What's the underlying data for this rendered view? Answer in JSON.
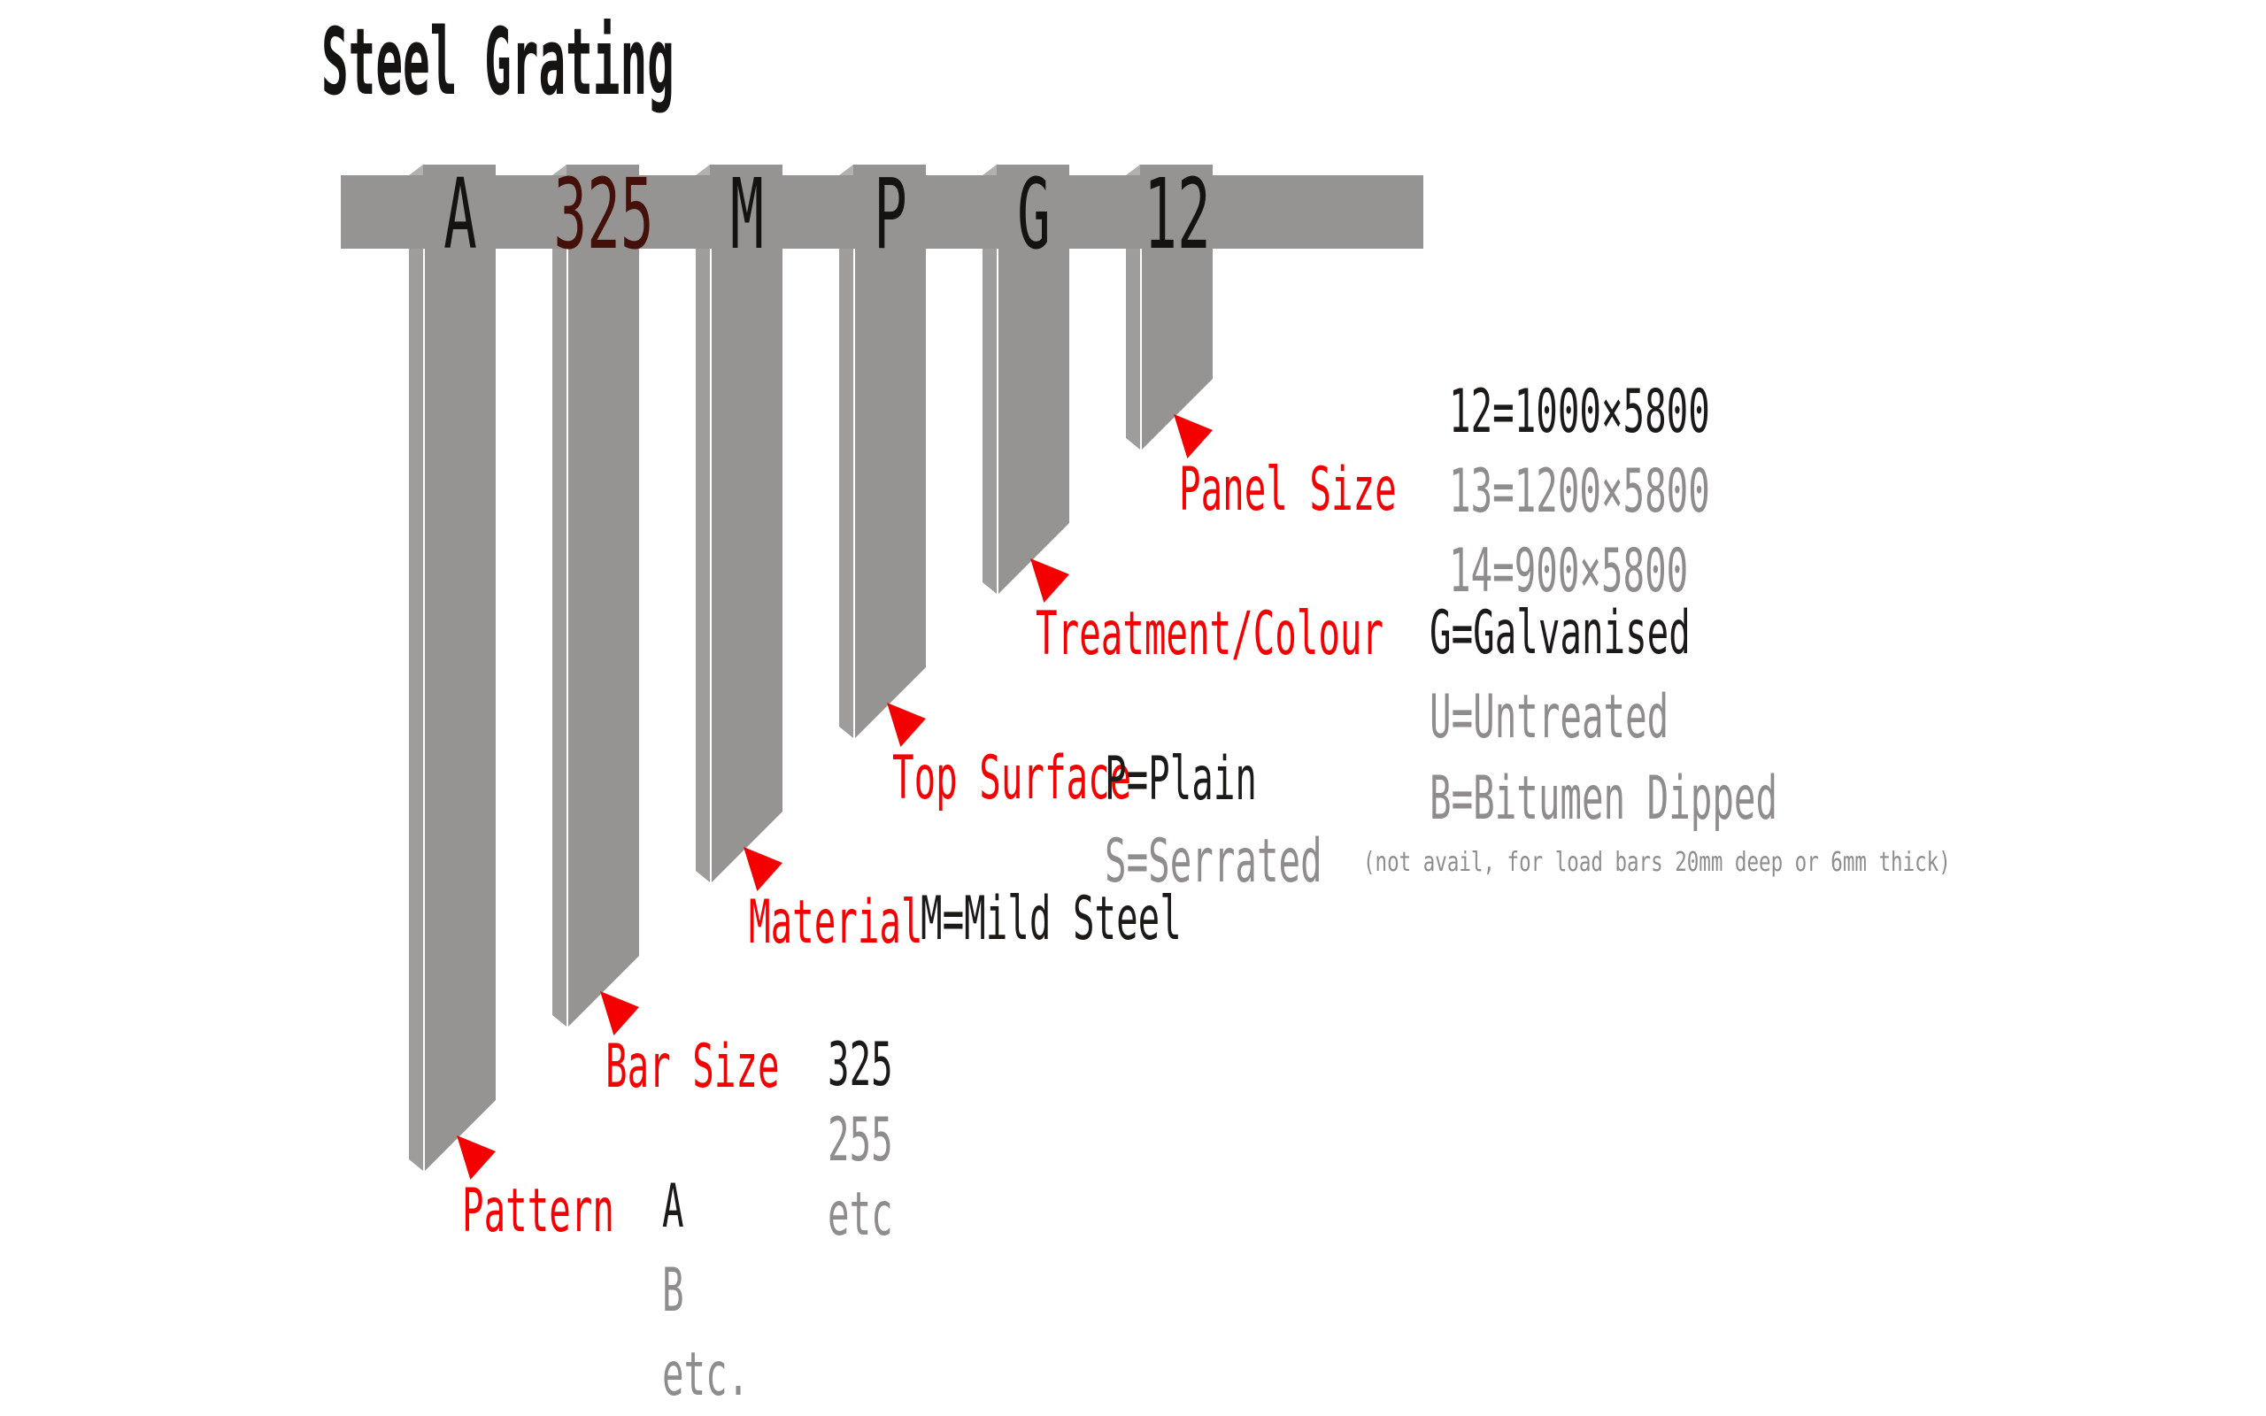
{
  "title": "Steel Grating",
  "colors": {
    "accent_red": "#f40000",
    "bar_gray": "#969492",
    "ribbon_side_gray": "#9f9d9b",
    "dark_text": "#1b1a19",
    "muted_text": "#8e8c8c",
    "code_maroon": "#431109"
  },
  "code_bar": {
    "code_string": "A 325 M P G 12",
    "segments": [
      {
        "code": "A",
        "label": "Pattern",
        "values": [
          {
            "text": "A",
            "tone": "dark"
          },
          {
            "text": "B",
            "tone": "muted"
          },
          {
            "text": "etc.",
            "tone": "muted"
          }
        ]
      },
      {
        "code": "325",
        "label": "Bar Size",
        "values": [
          {
            "text": "325",
            "tone": "dark"
          },
          {
            "text": "255",
            "tone": "muted"
          },
          {
            "text": "etc",
            "tone": "muted"
          }
        ]
      },
      {
        "code": "M",
        "label": "Material",
        "values": [
          {
            "text": "M=Mild Steel",
            "tone": "dark"
          }
        ]
      },
      {
        "code": "P",
        "label": "Top Surface",
        "values": [
          {
            "text": "P=Plain",
            "tone": "dark"
          },
          {
            "text": "S=Serrated",
            "tone": "muted"
          }
        ],
        "note": "(not avail, for load bars 20mm deep or 6mm thick)"
      },
      {
        "code": "G",
        "label": "Treatment/Colour",
        "values": [
          {
            "text": "G=Galvanised",
            "tone": "dark"
          },
          {
            "text": "U=Untreated",
            "tone": "muted"
          },
          {
            "text": "B=Bitumen Dipped",
            "tone": "muted"
          }
        ]
      },
      {
        "code": "12",
        "label": "Panel Size",
        "values": [
          {
            "text": "12=1000×5800",
            "tone": "dark"
          },
          {
            "text": "13=1200×5800",
            "tone": "muted"
          },
          {
            "text": "14=900×5800",
            "tone": "muted"
          }
        ]
      }
    ]
  }
}
